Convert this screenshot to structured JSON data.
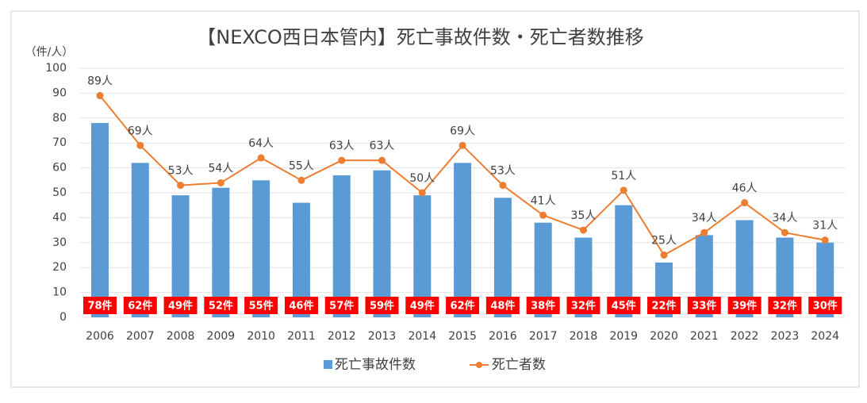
{
  "chart_data": {
    "type": "bar",
    "title": "【NEXCO西日本管内】死亡事故件数・死亡者数推移",
    "y_label": "（件/人）",
    "categories": [
      "2006",
      "2007",
      "2008",
      "2009",
      "2010",
      "2011",
      "2012",
      "2013",
      "2014",
      "2015",
      "2016",
      "2017",
      "2018",
      "2019",
      "2020",
      "2021",
      "2022",
      "2023",
      "2024"
    ],
    "series": [
      {
        "name": "死亡事故件数",
        "type": "bar",
        "color": "#5b9bd5",
        "values": [
          78,
          62,
          49,
          52,
          55,
          46,
          57,
          59,
          49,
          62,
          48,
          38,
          32,
          45,
          22,
          33,
          39,
          32,
          30
        ],
        "value_labels": [
          "78件",
          "62件",
          "49件",
          "52件",
          "55件",
          "46件",
          "57件",
          "59件",
          "49件",
          "62件",
          "48件",
          "38件",
          "32件",
          "45件",
          "22件",
          "33件",
          "39件",
          "32件",
          "30件"
        ],
        "label_color": "#ff0000"
      },
      {
        "name": "死亡者数",
        "type": "line",
        "color": "#ed7d31",
        "values": [
          89,
          69,
          53,
          54,
          64,
          55,
          63,
          63,
          50,
          69,
          53,
          41,
          35,
          51,
          25,
          34,
          46,
          34,
          31
        ],
        "value_labels": [
          "89人",
          "69人",
          "53人",
          "54人",
          "64人",
          "55人",
          "63人",
          "63人",
          "50人",
          "69人",
          "53人",
          "41人",
          "35人",
          "51人",
          "25人",
          "34人",
          "46人",
          "34人",
          "31人"
        ]
      }
    ],
    "ylim": [
      0,
      100
    ],
    "yticks": [
      0,
      10,
      20,
      30,
      40,
      50,
      60,
      70,
      80,
      90,
      100
    ],
    "grid": true,
    "legend": "bottom"
  }
}
